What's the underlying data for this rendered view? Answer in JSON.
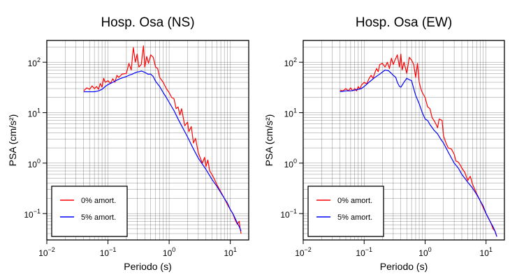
{
  "chart_data": [
    {
      "type": "line",
      "title": "Hosp. Osa (NS)",
      "xlabel": "Periodo (s)",
      "ylabel": "PSA (cm/s²)",
      "xscale": "log",
      "yscale": "log",
      "xlim": [
        0.01,
        20
      ],
      "ylim": [
        0.03,
        270
      ],
      "x_ticks": [
        0.01,
        0.1,
        1,
        10
      ],
      "x_tick_labels": [
        {
          "base": "10",
          "exp": "−2"
        },
        {
          "base": "10",
          "exp": "−1"
        },
        {
          "base": "10",
          "exp": "0"
        },
        {
          "base": "10",
          "exp": "1"
        }
      ],
      "y_ticks": [
        0.1,
        1,
        10,
        100
      ],
      "y_tick_labels": [
        {
          "base": "10",
          "exp": "−1"
        },
        {
          "base": "10",
          "exp": "0"
        },
        {
          "base": "10",
          "exp": "1"
        },
        {
          "base": "10",
          "exp": "2"
        }
      ],
      "grid": true,
      "legend_position": "bottom-left",
      "series": [
        {
          "name": "0% amort.",
          "color": "#ff0000",
          "points": [
            [
              0.04,
              27
            ],
            [
              0.045,
              31
            ],
            [
              0.05,
              29
            ],
            [
              0.055,
              34
            ],
            [
              0.06,
              30
            ],
            [
              0.065,
              33
            ],
            [
              0.07,
              29
            ],
            [
              0.075,
              38
            ],
            [
              0.08,
              32
            ],
            [
              0.085,
              48
            ],
            [
              0.09,
              40
            ],
            [
              0.1,
              43
            ],
            [
              0.11,
              38
            ],
            [
              0.12,
              47
            ],
            [
              0.13,
              40
            ],
            [
              0.14,
              55
            ],
            [
              0.15,
              50
            ],
            [
              0.17,
              58
            ],
            [
              0.2,
              60
            ],
            [
              0.22,
              95
            ],
            [
              0.24,
              70
            ],
            [
              0.26,
              195
            ],
            [
              0.28,
              100
            ],
            [
              0.3,
              145
            ],
            [
              0.32,
              80
            ],
            [
              0.35,
              90
            ],
            [
              0.38,
              210
            ],
            [
              0.4,
              80
            ],
            [
              0.43,
              130
            ],
            [
              0.46,
              95
            ],
            [
              0.5,
              140
            ],
            [
              0.55,
              125
            ],
            [
              0.6,
              80
            ],
            [
              0.65,
              75
            ],
            [
              0.7,
              50
            ],
            [
              0.8,
              40
            ],
            [
              0.9,
              30
            ],
            [
              1.0,
              25
            ],
            [
              1.1,
              20
            ],
            [
              1.2,
              19
            ],
            [
              1.3,
              12
            ],
            [
              1.4,
              13
            ],
            [
              1.5,
              9
            ],
            [
              1.6,
              12
            ],
            [
              1.7,
              8
            ],
            [
              1.8,
              5.5
            ],
            [
              2.0,
              6.5
            ],
            [
              2.1,
              4.2
            ],
            [
              2.3,
              5.3
            ],
            [
              2.5,
              2.5
            ],
            [
              2.7,
              3.1
            ],
            [
              3.0,
              1.6
            ],
            [
              3.2,
              1.3
            ],
            [
              3.5,
              1.0
            ],
            [
              3.8,
              1.3
            ],
            [
              4.0,
              0.85
            ],
            [
              4.3,
              1.15
            ],
            [
              4.6,
              0.7
            ],
            [
              5.0,
              0.6
            ],
            [
              5.5,
              0.48
            ],
            [
              6.0,
              0.38
            ],
            [
              7.0,
              0.27
            ],
            [
              8.0,
              0.2
            ],
            [
              9.0,
              0.15
            ],
            [
              10,
              0.12
            ],
            [
              11,
              0.1
            ],
            [
              12,
              0.075
            ],
            [
              13,
              0.062
            ],
            [
              14,
              0.07
            ],
            [
              14.5,
              0.05
            ],
            [
              15,
              0.04
            ]
          ]
        },
        {
          "name": "5% amort.",
          "color": "#0000ff",
          "points": [
            [
              0.04,
              26
            ],
            [
              0.05,
              26
            ],
            [
              0.06,
              26
            ],
            [
              0.07,
              27
            ],
            [
              0.08,
              29
            ],
            [
              0.09,
              33
            ],
            [
              0.1,
              36
            ],
            [
              0.12,
              40
            ],
            [
              0.15,
              46
            ],
            [
              0.18,
              50
            ],
            [
              0.2,
              52
            ],
            [
              0.22,
              55
            ],
            [
              0.25,
              58
            ],
            [
              0.28,
              62
            ],
            [
              0.3,
              64
            ],
            [
              0.33,
              65
            ],
            [
              0.35,
              67
            ],
            [
              0.4,
              63
            ],
            [
              0.45,
              58
            ],
            [
              0.5,
              58
            ],
            [
              0.55,
              52
            ],
            [
              0.6,
              42
            ],
            [
              0.7,
              33
            ],
            [
              0.8,
              25
            ],
            [
              0.9,
              20
            ],
            [
              1.0,
              16
            ],
            [
              1.2,
              11
            ],
            [
              1.4,
              7.5
            ],
            [
              1.6,
              5.5
            ],
            [
              1.8,
              4.2
            ],
            [
              2.0,
              3.3
            ],
            [
              2.5,
              1.9
            ],
            [
              3.0,
              1.25
            ],
            [
              3.5,
              0.95
            ],
            [
              4.0,
              0.75
            ],
            [
              5.0,
              0.48
            ],
            [
              6.0,
              0.35
            ],
            [
              7.0,
              0.26
            ],
            [
              8.0,
              0.2
            ],
            [
              9.0,
              0.16
            ],
            [
              10,
              0.12
            ],
            [
              11,
              0.1
            ],
            [
              12,
              0.08
            ],
            [
              13,
              0.065
            ],
            [
              14,
              0.055
            ],
            [
              15,
              0.045
            ]
          ]
        }
      ]
    },
    {
      "type": "line",
      "title": "Hosp. Osa (EW)",
      "xlabel": "Periodo (s)",
      "ylabel": "PSA (cm/s²)",
      "xscale": "log",
      "yscale": "log",
      "xlim": [
        0.01,
        20
      ],
      "ylim": [
        0.03,
        270
      ],
      "x_ticks": [
        0.01,
        0.1,
        1,
        10
      ],
      "x_tick_labels": [
        {
          "base": "10",
          "exp": "−2"
        },
        {
          "base": "10",
          "exp": "−1"
        },
        {
          "base": "10",
          "exp": "0"
        },
        {
          "base": "10",
          "exp": "1"
        }
      ],
      "y_ticks": [
        0.1,
        1,
        10,
        100
      ],
      "y_tick_labels": [
        {
          "base": "10",
          "exp": "−1"
        },
        {
          "base": "10",
          "exp": "0"
        },
        {
          "base": "10",
          "exp": "1"
        },
        {
          "base": "10",
          "exp": "2"
        }
      ],
      "grid": true,
      "legend_position": "bottom-left",
      "series": [
        {
          "name": "0% amort.",
          "color": "#ff0000",
          "points": [
            [
              0.04,
              28
            ],
            [
              0.045,
              27
            ],
            [
              0.05,
              30
            ],
            [
              0.055,
              27
            ],
            [
              0.06,
              31
            ],
            [
              0.065,
              27
            ],
            [
              0.07,
              30
            ],
            [
              0.075,
              27
            ],
            [
              0.08,
              33
            ],
            [
              0.085,
              29
            ],
            [
              0.09,
              35
            ],
            [
              0.1,
              40
            ],
            [
              0.11,
              37
            ],
            [
              0.12,
              47
            ],
            [
              0.13,
              55
            ],
            [
              0.14,
              48
            ],
            [
              0.15,
              62
            ],
            [
              0.16,
              75
            ],
            [
              0.17,
              65
            ],
            [
              0.18,
              90
            ],
            [
              0.2,
              95
            ],
            [
              0.22,
              80
            ],
            [
              0.24,
              100
            ],
            [
              0.26,
              75
            ],
            [
              0.28,
              120
            ],
            [
              0.3,
              90
            ],
            [
              0.32,
              110
            ],
            [
              0.35,
              140
            ],
            [
              0.38,
              80
            ],
            [
              0.4,
              145
            ],
            [
              0.42,
              70
            ],
            [
              0.45,
              100
            ],
            [
              0.5,
              60
            ],
            [
              0.55,
              125
            ],
            [
              0.6,
              110
            ],
            [
              0.65,
              90
            ],
            [
              0.7,
              50
            ],
            [
              0.75,
              95
            ],
            [
              0.8,
              40
            ],
            [
              0.85,
              30
            ],
            [
              0.9,
              25
            ],
            [
              1.0,
              20
            ],
            [
              1.1,
              13
            ],
            [
              1.2,
              12
            ],
            [
              1.3,
              8
            ],
            [
              1.4,
              7
            ],
            [
              1.5,
              6
            ],
            [
              1.6,
              5
            ],
            [
              1.7,
              7.5
            ],
            [
              1.9,
              7
            ],
            [
              2.0,
              3.5
            ],
            [
              2.2,
              2.5
            ],
            [
              2.4,
              2.0
            ],
            [
              2.7,
              1.9
            ],
            [
              3.0,
              1.5
            ],
            [
              3.2,
              1.1
            ],
            [
              3.5,
              1.05
            ],
            [
              3.8,
              0.9
            ],
            [
              4.0,
              0.8
            ],
            [
              4.5,
              0.65
            ],
            [
              5.0,
              0.45
            ],
            [
              5.5,
              0.55
            ],
            [
              6.0,
              0.38
            ],
            [
              7.0,
              0.25
            ],
            [
              8.0,
              0.18
            ],
            [
              9.0,
              0.13
            ],
            [
              10,
              0.1
            ],
            [
              11,
              0.08
            ],
            [
              12,
              0.065
            ],
            [
              13,
              0.05
            ],
            [
              14,
              0.045
            ],
            [
              15,
              0.035
            ]
          ]
        },
        {
          "name": "5% amort.",
          "color": "#0000ff",
          "points": [
            [
              0.04,
              26
            ],
            [
              0.05,
              27
            ],
            [
              0.06,
              27
            ],
            [
              0.07,
              28
            ],
            [
              0.08,
              29
            ],
            [
              0.09,
              30
            ],
            [
              0.1,
              33
            ],
            [
              0.12,
              40
            ],
            [
              0.15,
              50
            ],
            [
              0.18,
              58
            ],
            [
              0.2,
              64
            ],
            [
              0.22,
              70
            ],
            [
              0.25,
              68
            ],
            [
              0.28,
              60
            ],
            [
              0.3,
              55
            ],
            [
              0.33,
              50
            ],
            [
              0.35,
              40
            ],
            [
              0.38,
              33
            ],
            [
              0.4,
              32
            ],
            [
              0.45,
              40
            ],
            [
              0.5,
              48
            ],
            [
              0.55,
              45
            ],
            [
              0.6,
              43
            ],
            [
              0.65,
              30
            ],
            [
              0.7,
              22
            ],
            [
              0.8,
              15
            ],
            [
              0.9,
              10
            ],
            [
              1.0,
              7.5
            ],
            [
              1.1,
              7
            ],
            [
              1.2,
              5.8
            ],
            [
              1.4,
              4.5
            ],
            [
              1.6,
              3.8
            ],
            [
              1.8,
              3.0
            ],
            [
              2.0,
              2.5
            ],
            [
              2.5,
              1.5
            ],
            [
              3.0,
              1.0
            ],
            [
              3.5,
              0.8
            ],
            [
              4.0,
              0.6
            ],
            [
              5.0,
              0.42
            ],
            [
              6.0,
              0.32
            ],
            [
              7.0,
              0.24
            ],
            [
              8.0,
              0.18
            ],
            [
              9.0,
              0.14
            ],
            [
              10,
              0.1
            ],
            [
              11,
              0.08
            ],
            [
              12,
              0.065
            ],
            [
              13,
              0.055
            ],
            [
              14,
              0.045
            ],
            [
              15,
              0.035
            ]
          ]
        }
      ]
    }
  ]
}
